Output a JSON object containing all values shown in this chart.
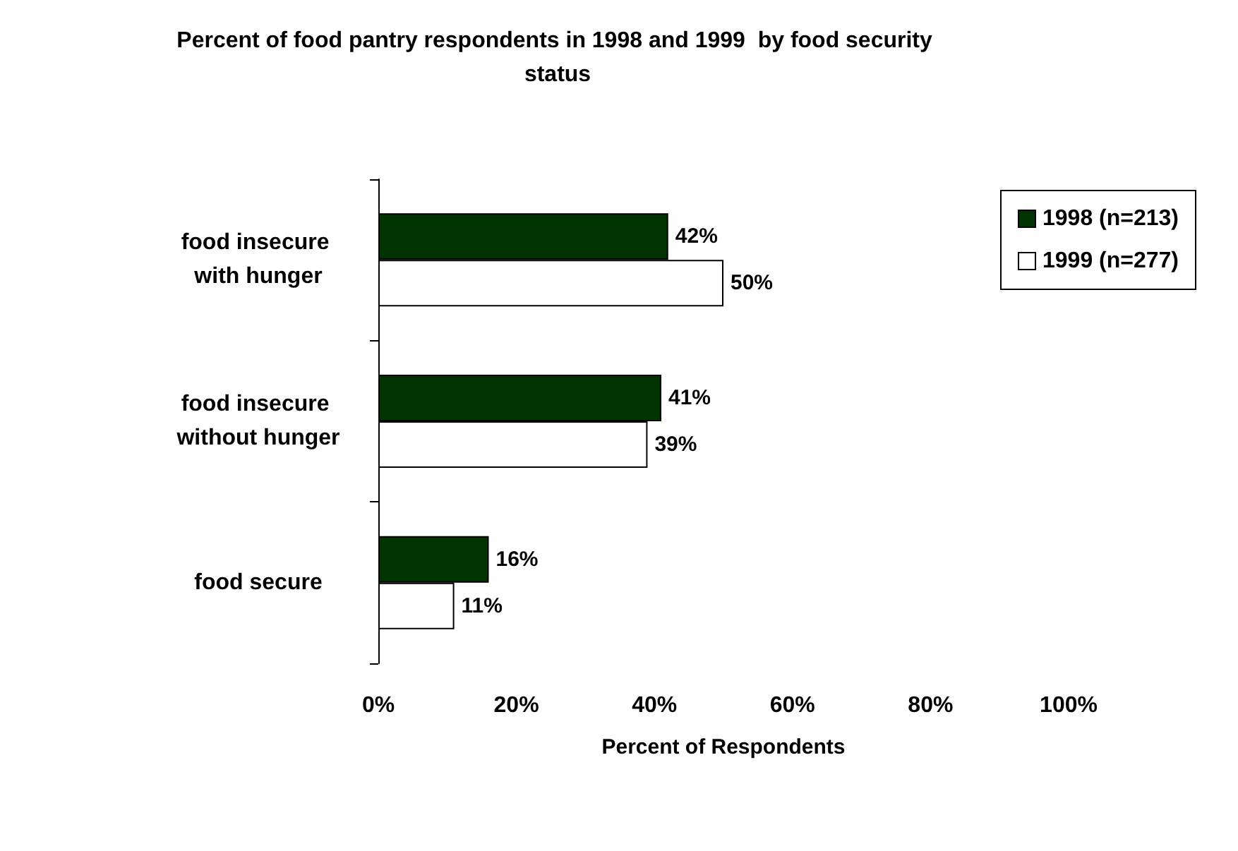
{
  "chart_data": {
    "type": "bar",
    "orientation": "horizontal",
    "title": "Percent of food pantry respondents in 1998 and 1999  by food security status",
    "xlabel": "Percent of Respondents",
    "categories": [
      "food insecure with hunger",
      "food insecure without hunger",
      "food secure"
    ],
    "series": [
      {
        "name": "1998 (n=213)",
        "color": "#003300",
        "values": [
          42,
          41,
          16
        ],
        "value_labels": [
          "42%",
          "41%",
          "16%"
        ]
      },
      {
        "name": "1999 (n=277)",
        "color": "#ffffff",
        "values": [
          50,
          39,
          11
        ],
        "value_labels": [
          "50%",
          "39%",
          "11%"
        ]
      }
    ],
    "xlim": [
      0,
      100
    ],
    "xticks": [
      {
        "value": 0,
        "label": "0%"
      },
      {
        "value": 20,
        "label": "20%"
      },
      {
        "value": 40,
        "label": "40%"
      },
      {
        "value": 60,
        "label": "60%"
      },
      {
        "value": 80,
        "label": "80%"
      },
      {
        "value": 100,
        "label": "100%"
      }
    ],
    "grid": false,
    "legend": "top right"
  }
}
